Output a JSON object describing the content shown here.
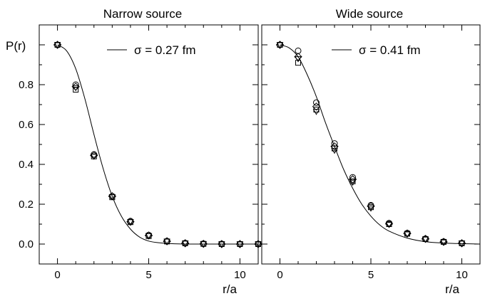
{
  "chart_data": [
    {
      "type": "scatter",
      "title": "Narrow source",
      "xlabel": "r/a",
      "ylabel": "P(r)",
      "xlim": [
        -1,
        11
      ],
      "ylim": [
        -0.1,
        1.1
      ],
      "xticks": [
        0,
        5,
        10
      ],
      "xtick_labels": [
        "0",
        "5",
        "10"
      ],
      "yticks": [
        0.0,
        0.2,
        0.4,
        0.6,
        0.8
      ],
      "ytick_labels": [
        "0.0",
        "0.2",
        "0.4",
        "0.6",
        "0.8"
      ],
      "legend": {
        "label": "σ = 0.27 fm",
        "placement": "top-right"
      },
      "fit_curve": {
        "x": [
          0,
          0.5,
          1,
          1.5,
          2,
          2.5,
          3,
          3.5,
          4,
          4.5,
          5,
          5.5,
          6,
          7,
          8,
          9,
          10,
          11
        ],
        "y": [
          1.0,
          0.97,
          0.88,
          0.73,
          0.55,
          0.38,
          0.24,
          0.14,
          0.075,
          0.035,
          0.015,
          0.007,
          0.003,
          0.0,
          0.0,
          0.0,
          0.0,
          0.0
        ]
      },
      "series": [
        {
          "marker": "circle",
          "x": [
            0,
            1,
            2,
            3,
            4,
            5,
            6,
            7,
            8,
            9,
            10,
            11
          ],
          "y": [
            1.0,
            0.8,
            0.45,
            0.24,
            0.115,
            0.045,
            0.015,
            0.005,
            0.002,
            0.001,
            0.0,
            0.0
          ]
        },
        {
          "marker": "square",
          "x": [
            0,
            1,
            2,
            3,
            4,
            5,
            6,
            7,
            8,
            9,
            10,
            11
          ],
          "y": [
            1.0,
            0.775,
            0.44,
            0.235,
            0.11,
            0.04,
            0.013,
            0.004,
            0.001,
            0.0,
            0.0,
            0.0
          ]
        },
        {
          "marker": "diamond",
          "x": [
            0,
            1,
            2,
            3,
            4,
            5,
            6,
            7,
            8,
            9,
            10,
            11
          ],
          "y": [
            1.0,
            0.79,
            0.445,
            0.24,
            0.112,
            0.043,
            0.014,
            0.004,
            0.001,
            0.0,
            0.0,
            0.0
          ]
        },
        {
          "marker": "triangle",
          "x": [
            0,
            1,
            2,
            3,
            4,
            5,
            6,
            7,
            8,
            9,
            10,
            11
          ],
          "y": [
            1.0,
            0.785,
            0.44,
            0.238,
            0.112,
            0.042,
            0.014,
            0.004,
            0.001,
            0.0,
            0.0,
            0.0
          ]
        }
      ]
    },
    {
      "type": "scatter",
      "title": "Wide source",
      "xlabel": "r/a",
      "ylabel": "",
      "xlim": [
        -1,
        11
      ],
      "ylim": [
        -0.1,
        1.1
      ],
      "xticks": [
        0,
        5,
        10
      ],
      "xtick_labels": [
        "0",
        "5",
        "10"
      ],
      "yticks": [],
      "ytick_labels": [],
      "legend": {
        "label": "σ = 0.41 fm",
        "placement": "top-right"
      },
      "fit_curve": {
        "x": [
          0,
          0.5,
          1,
          1.5,
          2,
          2.5,
          3,
          3.5,
          4,
          4.5,
          5,
          5.5,
          6,
          7,
          8,
          9,
          10,
          11
        ],
        "y": [
          1.0,
          0.985,
          0.94,
          0.85,
          0.74,
          0.61,
          0.49,
          0.375,
          0.28,
          0.2,
          0.14,
          0.095,
          0.065,
          0.03,
          0.012,
          0.005,
          0.002,
          0.0
        ]
      },
      "series": [
        {
          "marker": "circle",
          "x": [
            0,
            1,
            2,
            3,
            4,
            5,
            6,
            7,
            8,
            9,
            10
          ],
          "y": [
            1.0,
            0.97,
            0.71,
            0.505,
            0.335,
            0.195,
            0.105,
            0.055,
            0.027,
            0.012,
            0.004
          ]
        },
        {
          "marker": "square",
          "x": [
            0,
            1,
            2,
            3,
            4,
            5,
            6,
            7,
            8,
            9,
            10
          ],
          "y": [
            1.0,
            0.91,
            0.675,
            0.48,
            0.315,
            0.185,
            0.1,
            0.052,
            0.025,
            0.011,
            0.004
          ]
        },
        {
          "marker": "diamond",
          "x": [
            0,
            1,
            2,
            3,
            4,
            5,
            6,
            7,
            8,
            9,
            10
          ],
          "y": [
            1.0,
            0.94,
            0.69,
            0.49,
            0.325,
            0.19,
            0.102,
            0.053,
            0.026,
            0.011,
            0.004
          ]
        },
        {
          "marker": "triangle",
          "x": [
            0,
            1,
            2,
            3,
            4,
            5,
            6,
            7,
            8,
            9,
            10
          ],
          "y": [
            1.0,
            0.93,
            0.665,
            0.47,
            0.31,
            0.18,
            0.098,
            0.05,
            0.024,
            0.01,
            0.004
          ]
        }
      ]
    }
  ]
}
